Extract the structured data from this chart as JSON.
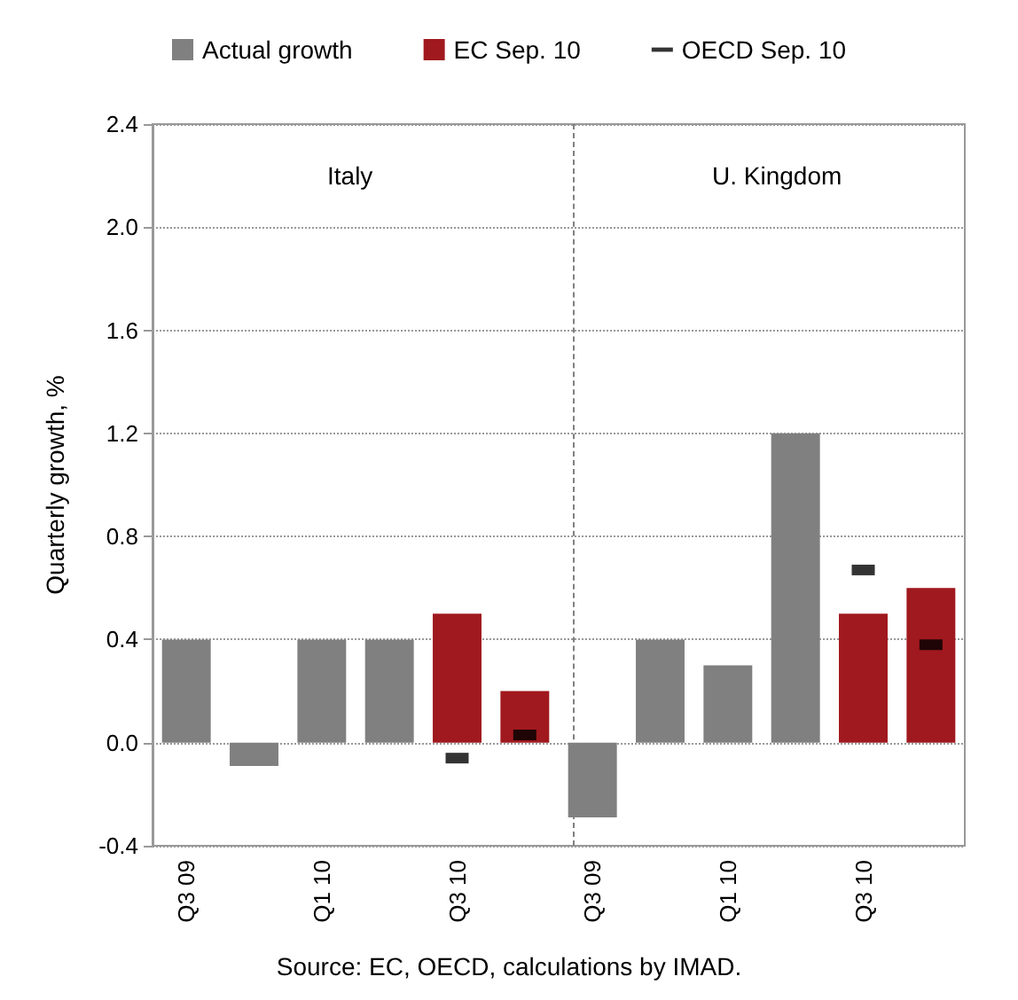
{
  "chart_data": {
    "type": "bar",
    "ylabel": "Quarterly growth, %",
    "categories": [
      "Q3 09",
      null,
      "Q1 10",
      null,
      "Q3 10",
      null,
      "Q3 09",
      null,
      "Q1 10",
      null,
      "Q3 10",
      null
    ],
    "series": [
      {
        "name": "Actual growth",
        "color": "#808080",
        "values": [
          0.4,
          -0.09,
          0.4,
          0.4,
          null,
          null,
          -0.29,
          0.4,
          0.3,
          1.2,
          null,
          null
        ]
      },
      {
        "name": "EC Sep. 10",
        "color": "#a0191e",
        "values": [
          null,
          null,
          null,
          null,
          0.5,
          0.2,
          null,
          null,
          null,
          null,
          0.5,
          0.6
        ]
      },
      {
        "name": "OECD Sep. 10",
        "type": "scatter",
        "color": "#000000",
        "values": [
          null,
          null,
          null,
          null,
          -0.06,
          0.03,
          null,
          null,
          null,
          null,
          0.67,
          0.38
        ]
      }
    ],
    "ylim": [
      -0.4,
      2.4
    ],
    "yticks": [
      -0.4,
      {
        "value": 0,
        "label": "0.0"
      },
      0.4,
      0.8,
      1.2,
      1.6,
      {
        "value": 2,
        "label": "2.0"
      },
      2.4
    ],
    "grid": "y",
    "legend": "top",
    "annotations": [
      "Italy",
      "U. Kingdom",
      "Source: EC, OECD, calculations by IMAD."
    ]
  }
}
